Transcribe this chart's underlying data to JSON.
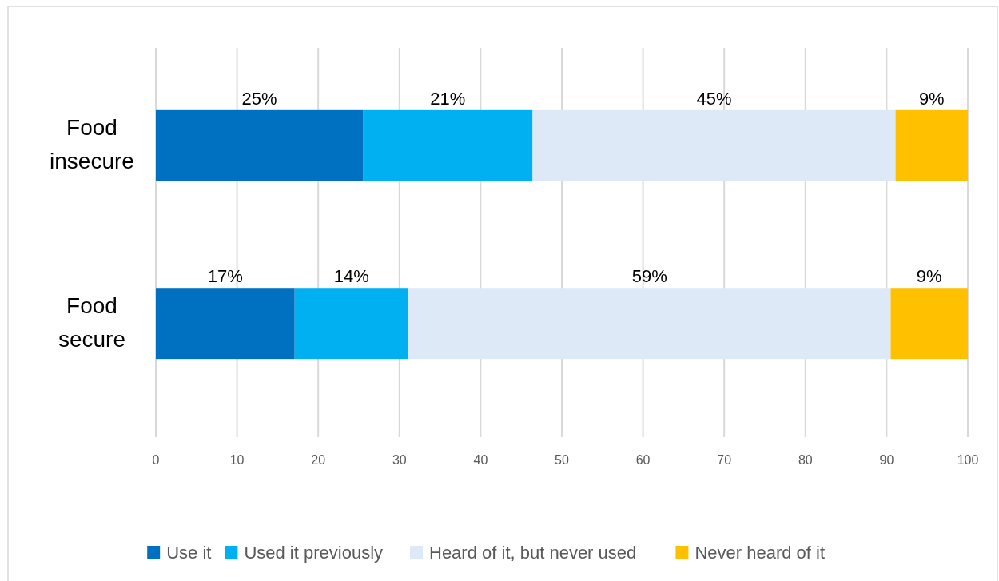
{
  "chart_data": {
    "type": "bar",
    "orientation": "horizontal",
    "stacked": true,
    "categories": [
      "Food insecure",
      "Food secure"
    ],
    "series": [
      {
        "name": "Use it",
        "color": "#0070c0",
        "values": [
          25.5,
          17.1
        ],
        "value_labels": [
          "25%",
          "17%"
        ]
      },
      {
        "name": "Used it previously",
        "color": "#00b0f0",
        "values": [
          20.9,
          14.0
        ],
        "value_labels": [
          "21%",
          "14%"
        ]
      },
      {
        "name": "Heard of it, but never used",
        "color": "#dde9f6",
        "values": [
          44.7,
          59.4
        ],
        "value_labels": [
          "45%",
          "59%"
        ]
      },
      {
        "name": "Never heard of it",
        "color": "#ffc000",
        "values": [
          8.9,
          9.5
        ],
        "value_labels": [
          "9%",
          "9%"
        ]
      }
    ],
    "xlim": [
      0,
      100
    ],
    "xticks": [
      0,
      10,
      20,
      30,
      40,
      50,
      60,
      70,
      80,
      90,
      100
    ],
    "grid": "x",
    "legend": "bottom"
  }
}
